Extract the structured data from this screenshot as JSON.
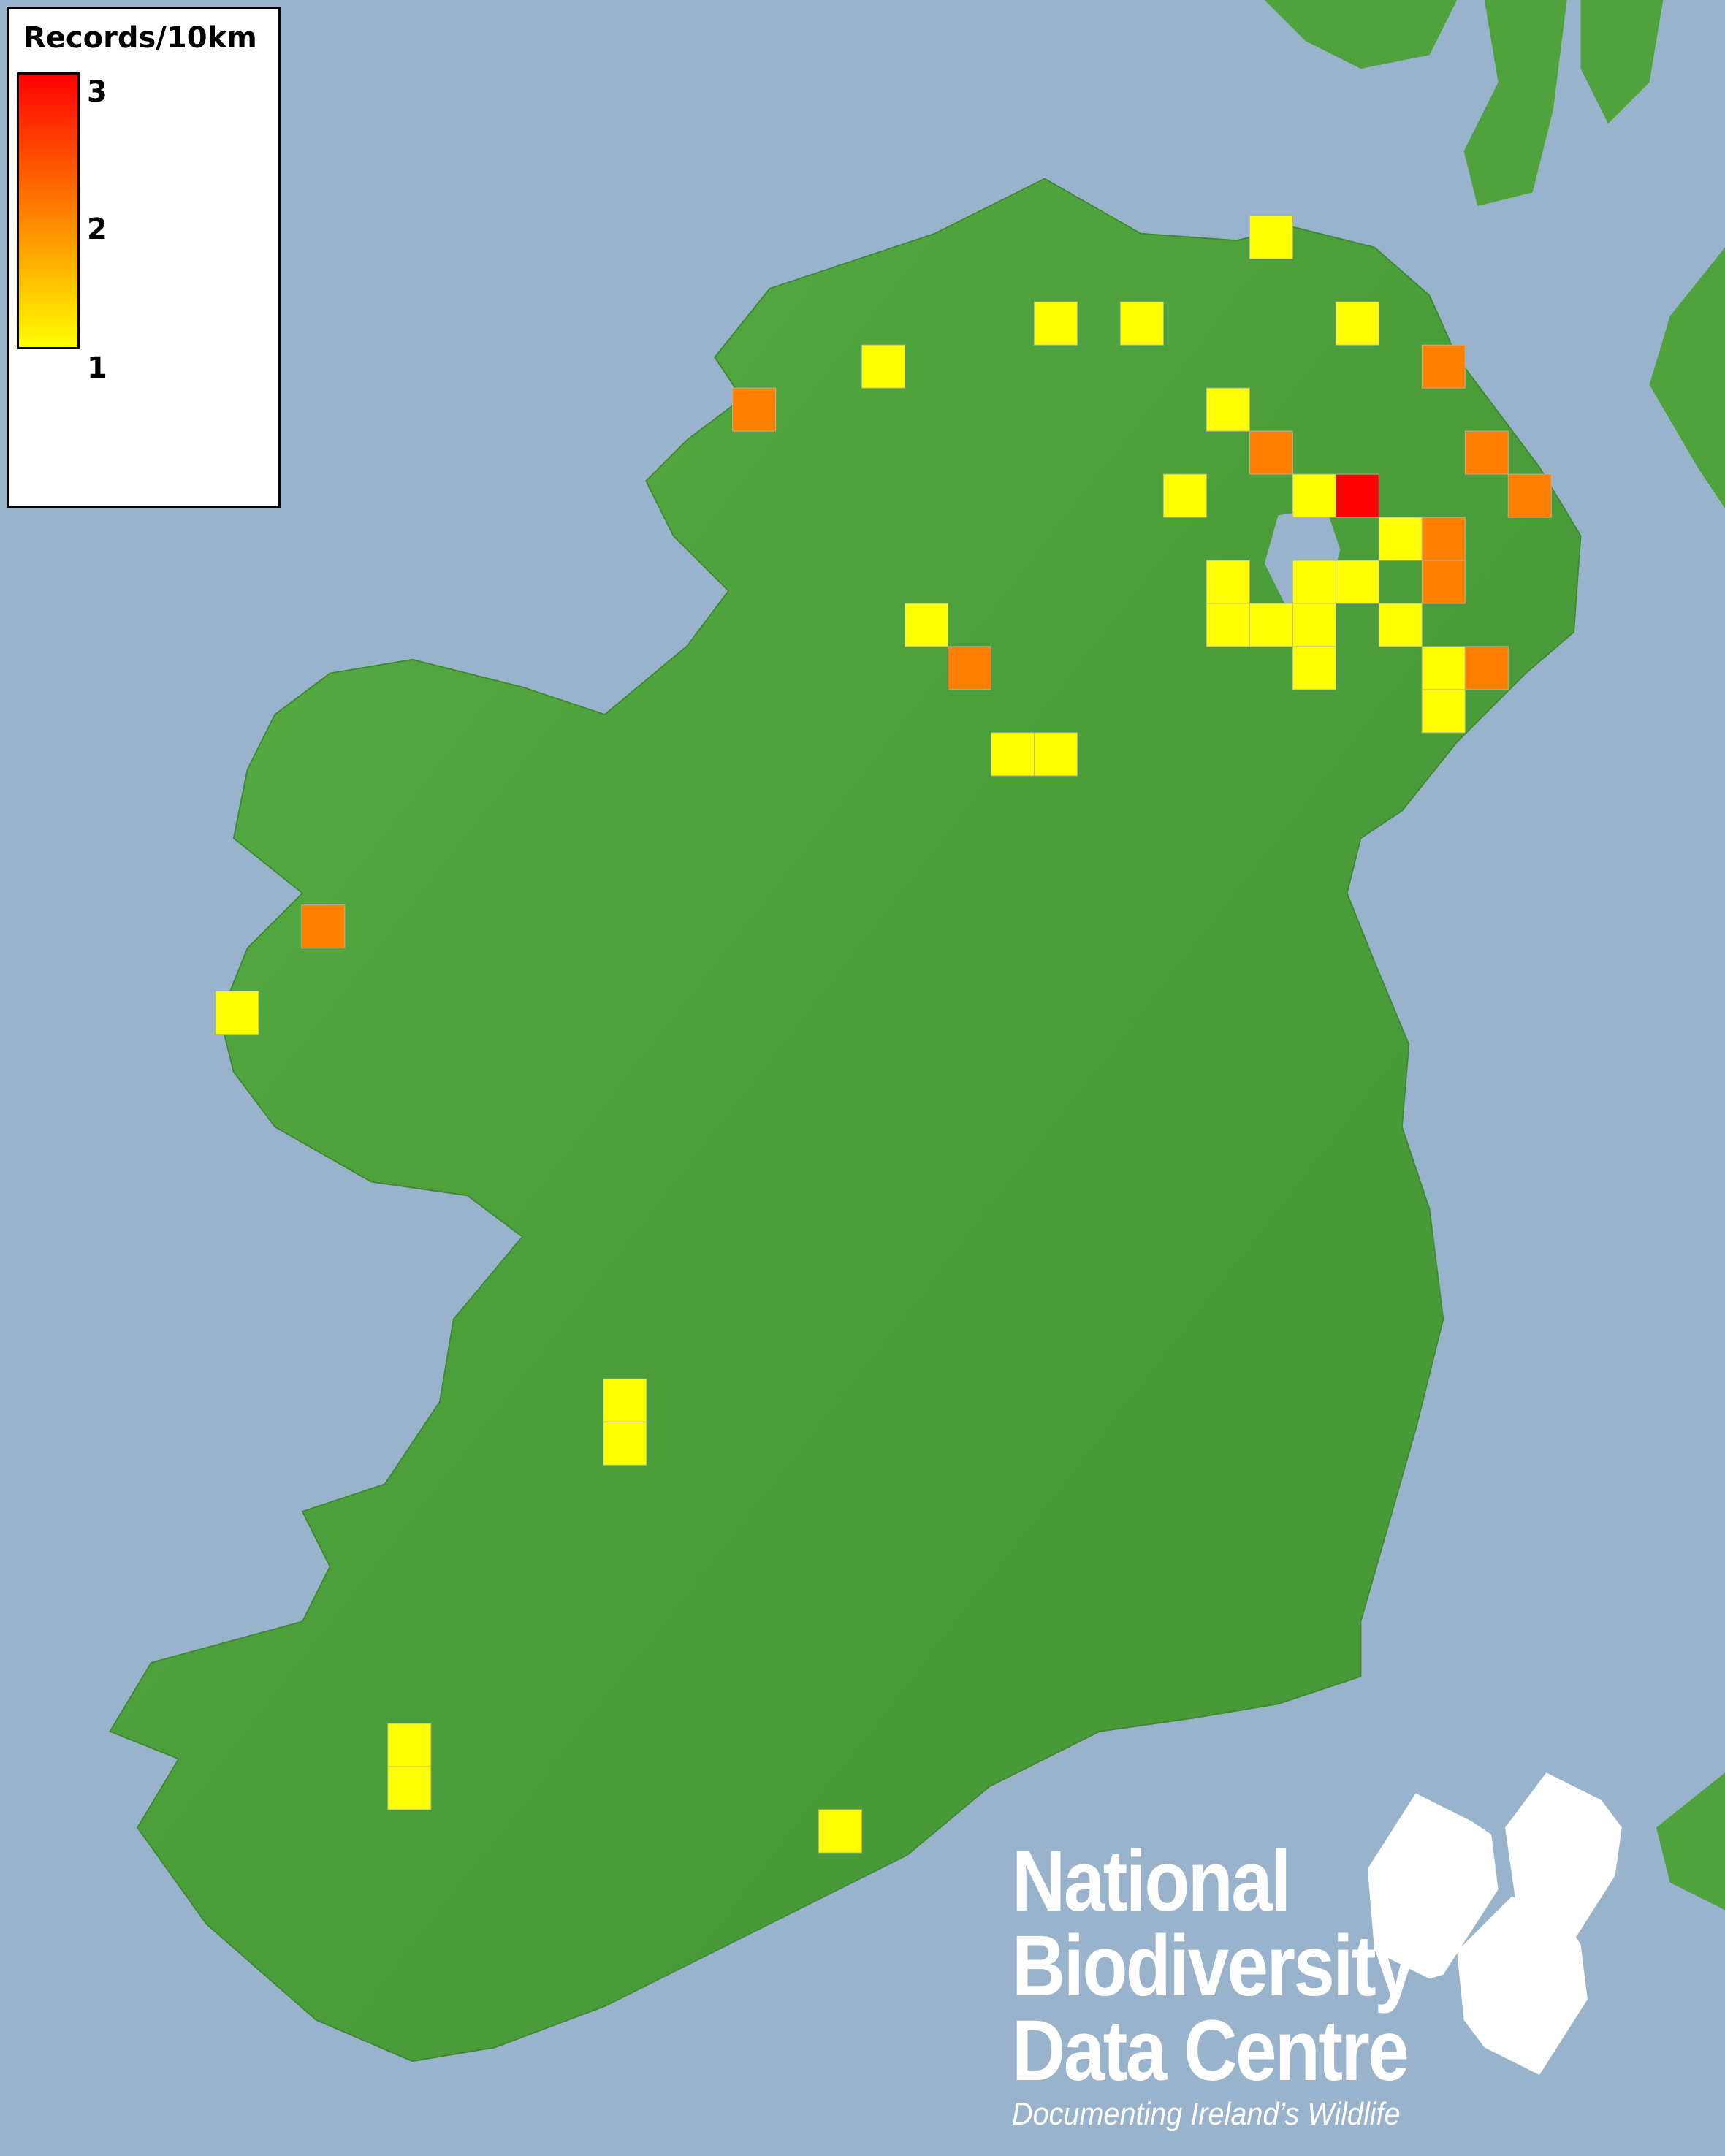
{
  "legend": {
    "title": "Records/10km",
    "max_label": "3",
    "mid_label": "2",
    "min_label": "1",
    "colors": {
      "min": "#ffff00",
      "mid": "#ff8000",
      "max": "#ff0000"
    }
  },
  "map": {
    "sea_color": "#9ab3cc",
    "land_color": "#4fa23c",
    "grid_cell_km": 10,
    "cells": [
      {
        "easting_km": 290,
        "northing_km": 450,
        "records": 1
      },
      {
        "easting_km": 240,
        "northing_km": 430,
        "records": 1
      },
      {
        "easting_km": 260,
        "northing_km": 430,
        "records": 1
      },
      {
        "easting_km": 310,
        "northing_km": 430,
        "records": 1
      },
      {
        "easting_km": 200,
        "northing_km": 420,
        "records": 1
      },
      {
        "easting_km": 330,
        "northing_km": 420,
        "records": 2
      },
      {
        "easting_km": 170,
        "northing_km": 410,
        "records": 2
      },
      {
        "easting_km": 280,
        "northing_km": 410,
        "records": 1
      },
      {
        "easting_km": 290,
        "northing_km": 400,
        "records": 2
      },
      {
        "easting_km": 340,
        "northing_km": 400,
        "records": 2
      },
      {
        "easting_km": 270,
        "northing_km": 390,
        "records": 1
      },
      {
        "easting_km": 300,
        "northing_km": 390,
        "records": 1
      },
      {
        "easting_km": 310,
        "northing_km": 390,
        "records": 3
      },
      {
        "easting_km": 350,
        "northing_km": 390,
        "records": 2
      },
      {
        "easting_km": 320,
        "northing_km": 380,
        "records": 1
      },
      {
        "easting_km": 330,
        "northing_km": 380,
        "records": 2
      },
      {
        "easting_km": 280,
        "northing_km": 370,
        "records": 1
      },
      {
        "easting_km": 300,
        "northing_km": 370,
        "records": 1
      },
      {
        "easting_km": 310,
        "northing_km": 370,
        "records": 1
      },
      {
        "easting_km": 330,
        "northing_km": 370,
        "records": 2
      },
      {
        "easting_km": 210,
        "northing_km": 360,
        "records": 1
      },
      {
        "easting_km": 280,
        "northing_km": 360,
        "records": 1
      },
      {
        "easting_km": 290,
        "northing_km": 360,
        "records": 1
      },
      {
        "easting_km": 300,
        "northing_km": 360,
        "records": 1
      },
      {
        "easting_km": 320,
        "northing_km": 360,
        "records": 1
      },
      {
        "easting_km": 220,
        "northing_km": 350,
        "records": 2
      },
      {
        "easting_km": 300,
        "northing_km": 350,
        "records": 1
      },
      {
        "easting_km": 330,
        "northing_km": 350,
        "records": 1
      },
      {
        "easting_km": 340,
        "northing_km": 350,
        "records": 2
      },
      {
        "easting_km": 330,
        "northing_km": 340,
        "records": 1
      },
      {
        "easting_km": 230,
        "northing_km": 330,
        "records": 1
      },
      {
        "easting_km": 240,
        "northing_km": 330,
        "records": 1
      },
      {
        "easting_km": 70,
        "northing_km": 290,
        "records": 2
      },
      {
        "easting_km": 50,
        "northing_km": 270,
        "records": 1
      },
      {
        "easting_km": 140,
        "northing_km": 180,
        "records": 1
      },
      {
        "easting_km": 140,
        "northing_km": 170,
        "records": 1
      },
      {
        "easting_km": 90,
        "northing_km": 100,
        "records": 1
      },
      {
        "easting_km": 90,
        "northing_km": 90,
        "records": 1
      },
      {
        "easting_km": 190,
        "northing_km": 80,
        "records": 1
      }
    ]
  },
  "logo": {
    "line1": "National",
    "line2": "Biodiversity",
    "line3": "Data Centre",
    "tagline": "Documenting Ireland’s Wildlife"
  }
}
